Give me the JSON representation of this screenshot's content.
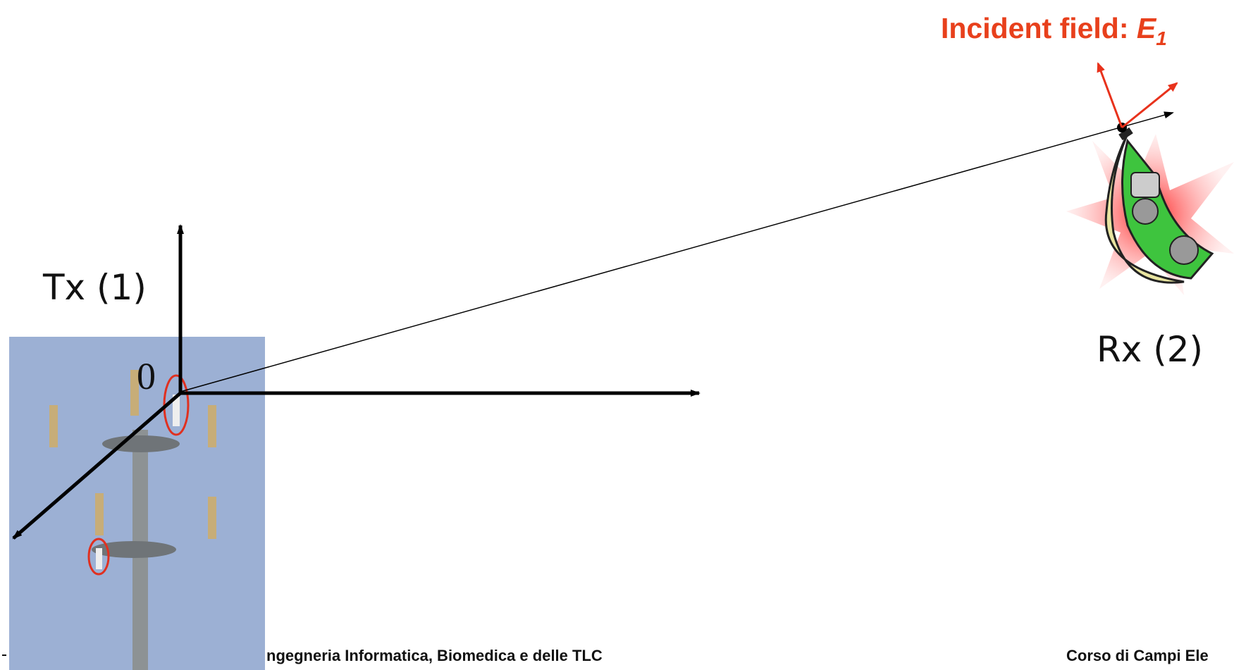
{
  "incident_label": {
    "text": "Incident field: ",
    "symbol": "E",
    "subscript": "1"
  },
  "tx_label": "Tx (1)",
  "origin_label": "0",
  "rx_label": "Rx (2)",
  "footer": {
    "left": "ngegneria Informatica, Biomedica e delle TLC",
    "right": "Corso di Campi Ele"
  }
}
